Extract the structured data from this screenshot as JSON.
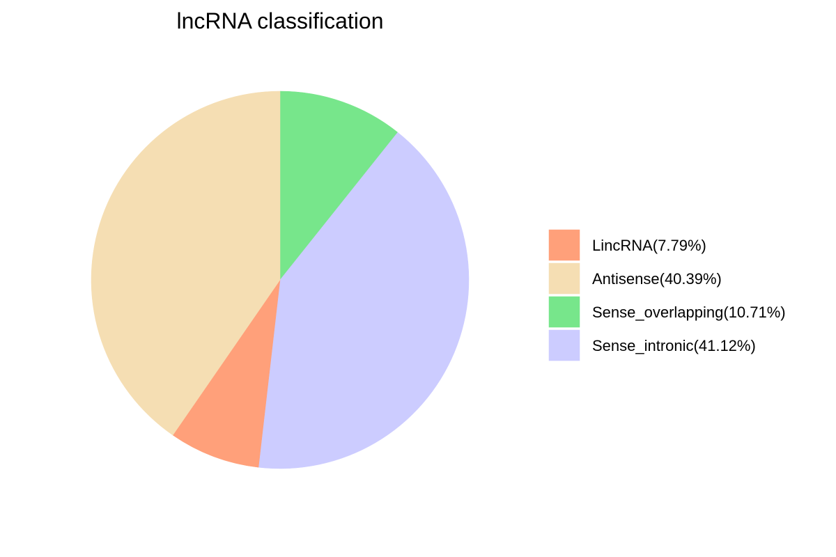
{
  "chart_data": {
    "type": "pie",
    "title": "lncRNA classification",
    "slices": [
      {
        "label": "LincRNA(7.79%)",
        "value": 7.79,
        "color": "#FFA07A"
      },
      {
        "label": "Antisense(40.39%)",
        "value": 40.39,
        "color": "#F5DEB3"
      },
      {
        "label": "Sense_overlapping(10.71%)",
        "value": 10.71,
        "color": "#77E68B"
      },
      {
        "label": "Sense_intronic(41.12%)",
        "value": 41.12,
        "color": "#CCCCFF"
      }
    ],
    "draw_order": [
      "Sense_overlapping(10.71%)",
      "Sense_intronic(41.12%)",
      "LincRNA(7.79%)",
      "Antisense(40.39%)"
    ],
    "start": "12 o'clock",
    "direction": "clockwise",
    "legend": "right"
  }
}
